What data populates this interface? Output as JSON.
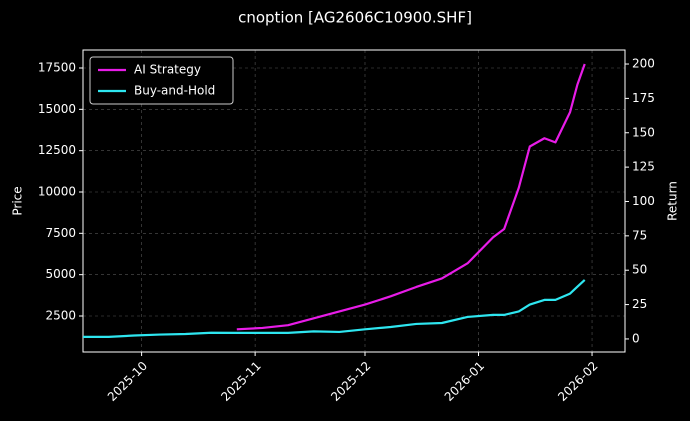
{
  "chart_data": {
    "type": "line",
    "title": "cnoption [AG2606C10900.SHF]",
    "y_label": "Price",
    "y2_label": "Return",
    "x": [
      "2025-09-15",
      "2025-09-22",
      "2025-09-29",
      "2025-10-06",
      "2025-10-13",
      "2025-10-20",
      "2025-10-27",
      "2025-11-03",
      "2025-11-10",
      "2025-11-17",
      "2025-11-24",
      "2025-12-01",
      "2025-12-08",
      "2025-12-15",
      "2025-12-22",
      "2025-12-29",
      "2026-01-05",
      "2026-01-08",
      "2026-01-12",
      "2026-01-15",
      "2026-01-19",
      "2026-01-22",
      "2026-01-26",
      "2026-01-28",
      "2026-01-30"
    ],
    "series": [
      {
        "name": "AI Strategy",
        "color": "#e81ce8",
        "axis": "y2",
        "values": [
          null,
          null,
          null,
          null,
          null,
          null,
          7,
          8,
          10,
          15,
          20,
          25,
          31,
          37.8,
          44,
          55,
          74,
          80,
          110,
          140,
          146,
          143,
          165,
          185,
          200
        ]
      },
      {
        "name": "Buy-and-Hold",
        "color": "#2ee6f0",
        "axis": "y2",
        "values": [
          1.5,
          1.5,
          2.5,
          3.2,
          3.6,
          4.5,
          4.4,
          4.4,
          4.4,
          5.5,
          5.1,
          7,
          8.7,
          10.9,
          11.6,
          16,
          17.5,
          17.5,
          20,
          25,
          28.4,
          28.4,
          33,
          38,
          42.9
        ]
      }
    ],
    "xlim": [
      "2025-09-15",
      "2026-02-10"
    ],
    "xticks": [
      {
        "value": "2025-10-01",
        "label": "2025-10"
      },
      {
        "value": "2025-11-01",
        "label": "2025-11"
      },
      {
        "value": "2025-12-01",
        "label": "2025-12"
      },
      {
        "value": "2026-01-01",
        "label": "2026-01"
      },
      {
        "value": "2026-02-01",
        "label": "2026-02"
      }
    ],
    "ylim": [
      322,
      18589
    ],
    "yticks": [
      2500,
      5000,
      7500,
      10000,
      12500,
      15000,
      17500
    ],
    "y2lim": [
      -9.5,
      210.2
    ],
    "y2ticks": [
      0,
      25,
      50,
      75,
      100,
      125,
      150,
      175,
      200
    ],
    "grid": true,
    "legend": "upper left"
  }
}
